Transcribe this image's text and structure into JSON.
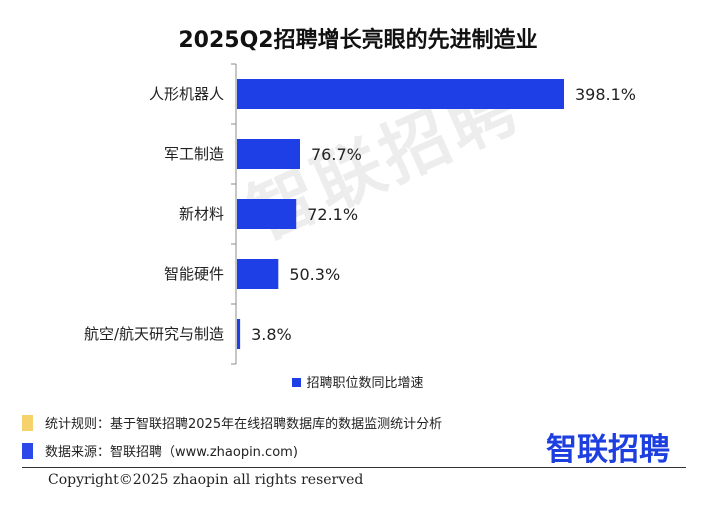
{
  "title": "2025Q2招聘增长亮眼的先进制造业",
  "watermark": "智联招聘",
  "chart_data": {
    "type": "bar",
    "orientation": "horizontal",
    "categories": [
      "人形机器人",
      "军工制造",
      "新材料",
      "智能硬件",
      "航空/航天研究与制造"
    ],
    "series": [
      {
        "name": "招聘职位数同比增速",
        "values": [
          398.1,
          76.7,
          72.1,
          50.3,
          3.8
        ]
      }
    ],
    "value_labels": [
      "398.1%",
      "76.7%",
      "72.1%",
      "50.3%",
      "3.8%"
    ],
    "xlim": [
      0,
      398.1
    ],
    "grid": false,
    "legend_position": "bottom",
    "bar_color": "#1f3fe6"
  },
  "legend": {
    "label": "招聘职位数同比增速"
  },
  "notes": {
    "rule": "统计规则：基于智联招聘2025年在线招聘数据库的数据监测统计分析",
    "rule_color": "#f5d36a",
    "source": "数据来源：智联招聘（www.zhaopin.com)",
    "source_color": "#2a49e8"
  },
  "logo": "智联招聘",
  "copyright": "Copyright©2025 zhaopin all rights reserved"
}
